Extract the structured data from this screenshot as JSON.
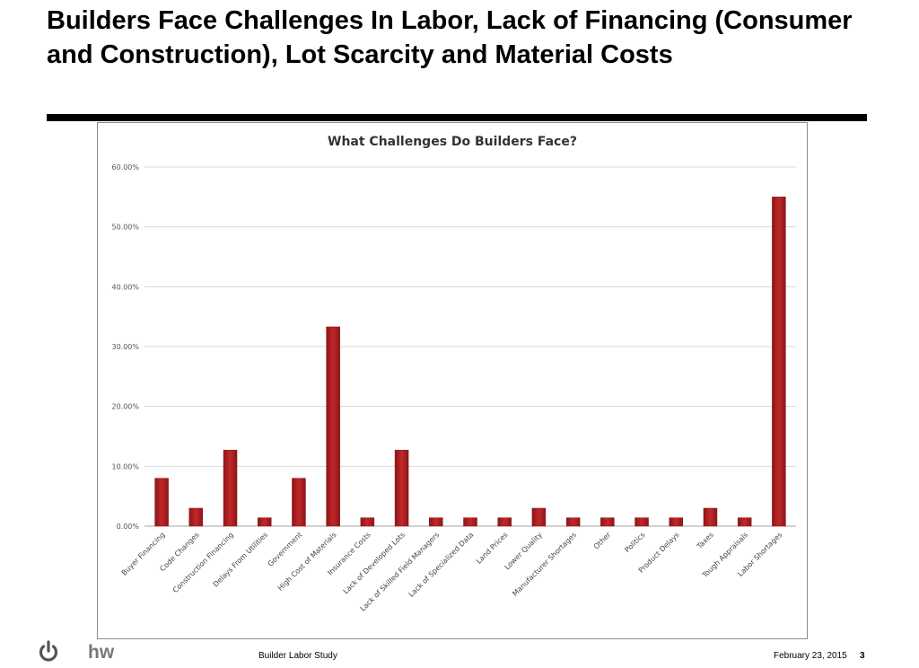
{
  "slide": {
    "title": "Builders Face Challenges In Labor, Lack of Financing (Consumer and Construction), Lot Scarcity and Material Costs"
  },
  "footer": {
    "center_text": "Builder Labor Study",
    "date": "February 23, 2015",
    "page_number": "3",
    "logo_text": "hw"
  },
  "colors": {
    "bar": "#c0282b",
    "bar_dark": "#8e1517",
    "grid": "#d9d9d9",
    "axis": "#a6a6a6"
  },
  "chart_data": {
    "type": "bar",
    "title": "What Challenges Do Builders Face?",
    "xlabel": "",
    "ylabel": "",
    "ylim": [
      0,
      60
    ],
    "yticks": [
      "0.00%",
      "10.00%",
      "20.00%",
      "30.00%",
      "40.00%",
      "50.00%",
      "60.00%"
    ],
    "grid": true,
    "categories": [
      "Buyer Financing",
      "Code Changes",
      "Construction Financing",
      "Delays From Utilities",
      "Government",
      "High Cost of Materials",
      "Insurance Costs",
      "Lack of Developed Lots",
      "Lack of Skilled Field Managers",
      "Lack of Specialized Data",
      "Land Prices",
      "Lower Quality",
      "Manufacturer Shortages",
      "Other",
      "Politics",
      "Product Delays",
      "Taxes",
      "Tough Appraisals",
      "Labor Shortages"
    ],
    "values": [
      8.0,
      3.0,
      12.7,
      1.4,
      8.0,
      33.3,
      1.4,
      12.7,
      1.4,
      1.4,
      1.4,
      3.0,
      1.4,
      1.4,
      1.4,
      1.4,
      3.0,
      1.4,
      55.0
    ]
  }
}
